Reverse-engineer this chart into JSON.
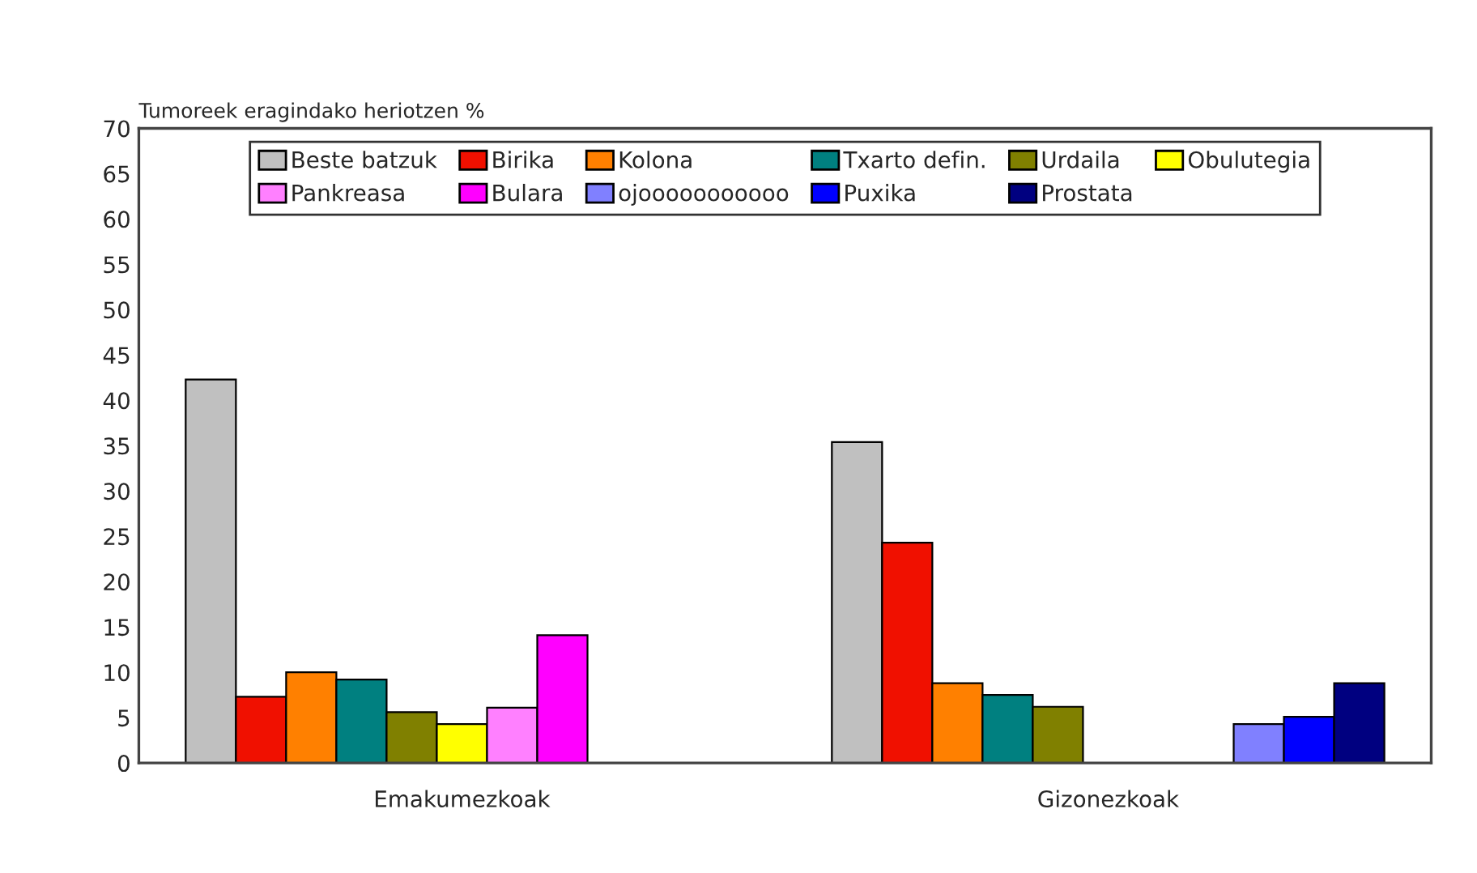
{
  "chart_data": {
    "type": "bar",
    "ylabel": "Tumoreek eragindako heriotzen %",
    "categories": [
      "Emakumezkoak",
      "Gizonezkoak"
    ],
    "series": [
      {
        "name": "Beste batzuk",
        "color": "#c0c0c0",
        "values": [
          42.3,
          35.4
        ]
      },
      {
        "name": "Birika",
        "color": "#f01000",
        "values": [
          7.3,
          24.3
        ]
      },
      {
        "name": "Kolona",
        "color": "#ff8000",
        "values": [
          10.0,
          8.8
        ]
      },
      {
        "name": "Txarto defin.",
        "color": "#008080",
        "values": [
          9.2,
          7.5
        ]
      },
      {
        "name": "Urdaila",
        "color": "#808000",
        "values": [
          5.6,
          6.2
        ]
      },
      {
        "name": "Obulutegia",
        "color": "#ffff00",
        "values": [
          4.3,
          null
        ]
      },
      {
        "name": "Pankreasa",
        "color": "#ff80ff",
        "values": [
          6.1,
          null
        ]
      },
      {
        "name": "Bulara",
        "color": "#ff00ff",
        "values": [
          14.1,
          null
        ]
      },
      {
        "name": "ojooooooooooo",
        "color": "#8080ff",
        "values": [
          null,
          4.3
        ]
      },
      {
        "name": "Puxika",
        "color": "#0000ff",
        "values": [
          null,
          5.1
        ]
      },
      {
        "name": "Prostata",
        "color": "#000080",
        "values": [
          null,
          8.8
        ]
      }
    ],
    "ylim": [
      0,
      70
    ],
    "yticks": [
      0,
      5,
      10,
      15,
      20,
      25,
      30,
      35,
      40,
      45,
      50,
      55,
      60,
      65,
      70
    ],
    "grid": false,
    "legend": "top"
  }
}
